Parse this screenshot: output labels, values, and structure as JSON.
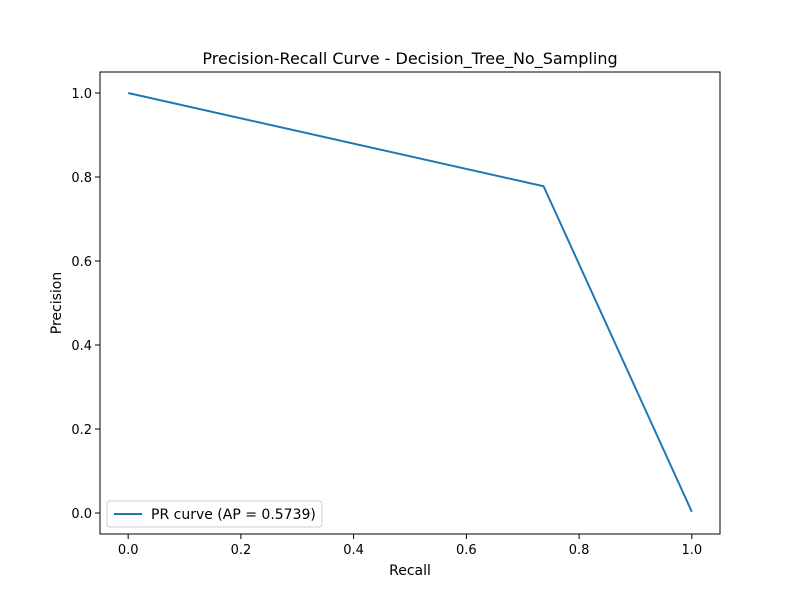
{
  "chart_data": {
    "type": "line",
    "title": "Precision-Recall Curve - Decision_Tree_No_Sampling",
    "xlabel": "Recall",
    "ylabel": "Precision",
    "xlim": [
      -0.05,
      1.05
    ],
    "ylim": [
      -0.05,
      1.05
    ],
    "xticks": [
      0.0,
      0.2,
      0.4,
      0.6,
      0.8,
      1.0
    ],
    "yticks": [
      0.0,
      0.2,
      0.4,
      0.6,
      0.8,
      1.0
    ],
    "xtick_labels": [
      "0.0",
      "0.2",
      "0.4",
      "0.6",
      "0.8",
      "1.0"
    ],
    "ytick_labels": [
      "0.0",
      "0.2",
      "0.4",
      "0.6",
      "0.8",
      "1.0"
    ],
    "grid": false,
    "legend_position": "lower-left",
    "series": [
      {
        "name": "PR curve (AP = 0.5739)",
        "color": "#1f77b4",
        "x": [
          0.0,
          0.737,
          1.0
        ],
        "y": [
          1.0,
          0.778,
          0.003
        ]
      }
    ]
  }
}
